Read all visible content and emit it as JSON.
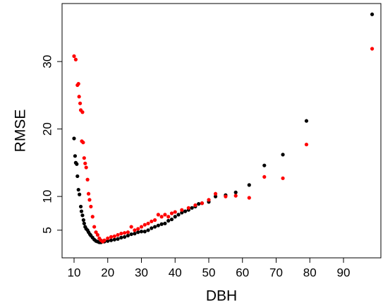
{
  "chart_data": {
    "type": "scatter",
    "x_label": "DBH",
    "y_label": "RMSE",
    "xlim": [
      6.44,
      101.1
    ],
    "ylim": [
      0.9,
      38.6
    ],
    "xticks": [
      10,
      20,
      30,
      40,
      50,
      60,
      70,
      80,
      90
    ],
    "yticks": [
      5,
      10,
      20,
      30
    ],
    "series": [
      {
        "color": "#000000",
        "x": [
          10,
          10.3,
          10.5,
          10.8,
          11,
          11.3,
          11.6,
          12,
          12.2,
          12.5,
          12.8,
          13,
          13.3,
          13.6,
          14,
          14.3,
          14.7,
          15,
          15.5,
          16,
          16.5,
          17,
          17.5,
          18,
          19,
          20,
          21,
          22,
          23,
          24,
          25,
          26,
          27,
          28,
          29,
          30,
          31,
          32,
          33,
          34,
          35,
          36,
          37,
          38,
          39,
          40,
          41,
          42,
          43,
          44,
          45,
          46,
          47,
          48,
          50,
          52,
          55,
          58,
          62,
          66.5,
          72,
          79,
          98.5
        ],
        "values": [
          18.6,
          16,
          15,
          14.8,
          13,
          11,
          10.3,
          8.5,
          7.8,
          7.2,
          6.5,
          6,
          5.5,
          5.2,
          5,
          4.7,
          4.4,
          4.2,
          3.9,
          3.6,
          3.4,
          3.3,
          3.2,
          3.2,
          3.3,
          3.4,
          3.5,
          3.6,
          3.7,
          3.9,
          4,
          4.2,
          4.4,
          4.5,
          4.7,
          4.8,
          4.8,
          5,
          5.3,
          5.5,
          5.7,
          5.9,
          6,
          6.4,
          6.6,
          7,
          7.3,
          7.6,
          7.8,
          8,
          8.3,
          8.5,
          8.9,
          9,
          9.2,
          10,
          10.2,
          10.6,
          11.7,
          14.6,
          16.2,
          21.2,
          37
        ]
      },
      {
        "color": "#ff0000",
        "x": [
          10,
          10.5,
          11,
          11.3,
          11.5,
          11.8,
          12,
          12.5,
          12.3,
          12.7,
          13,
          13.3,
          13.6,
          14,
          14.3,
          14.6,
          15,
          15.5,
          16,
          16.5,
          17,
          17.5,
          18,
          18.5,
          19,
          20,
          21,
          22,
          23,
          24,
          25,
          26,
          27,
          28,
          29,
          30,
          31,
          32,
          33,
          34,
          35,
          36,
          37,
          38,
          39,
          40,
          42,
          44,
          46,
          48,
          50,
          52,
          55,
          58,
          62,
          66.5,
          72,
          79,
          98.5
        ],
        "values": [
          30.8,
          30.3,
          26.5,
          26.7,
          24.8,
          23.8,
          22.8,
          22.5,
          18.2,
          18,
          15.7,
          14.9,
          14.3,
          12.5,
          10.4,
          9.5,
          8.5,
          7,
          5.5,
          4.7,
          4.3,
          3.8,
          3.5,
          3.3,
          3.5,
          3.8,
          4,
          4.1,
          4.3,
          4.5,
          4.6,
          4.7,
          5.5,
          5,
          5.2,
          5.5,
          5.8,
          6,
          6.3,
          6.5,
          7.3,
          7,
          7.3,
          7,
          7.5,
          7.7,
          8,
          8.3,
          8.7,
          9,
          9.5,
          10.4,
          10,
          10.1,
          9.8,
          12.9,
          12.7,
          17.7,
          31.9
        ]
      }
    ]
  }
}
